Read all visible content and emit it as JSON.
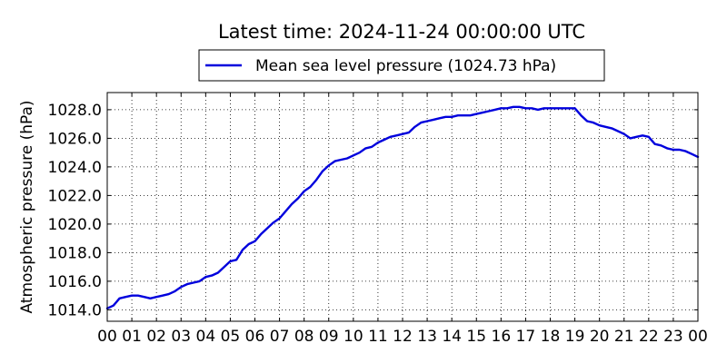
{
  "chart_data": {
    "type": "line",
    "title": "Latest time: 2024-11-24 00:00:00 UTC",
    "xlabel": "",
    "ylabel": "Atmospheric pressure (hPa)",
    "x_tick_labels": [
      "00",
      "01",
      "02",
      "03",
      "04",
      "05",
      "06",
      "07",
      "08",
      "09",
      "10",
      "11",
      "12",
      "13",
      "14",
      "15",
      "16",
      "17",
      "18",
      "19",
      "20",
      "21",
      "22",
      "23",
      "00"
    ],
    "y_tick_labels": [
      "1014.0",
      "1016.0",
      "1018.0",
      "1020.0",
      "1022.0",
      "1024.0",
      "1026.0",
      "1028.0"
    ],
    "y_ticks": [
      1014,
      1016,
      1018,
      1020,
      1022,
      1024,
      1026,
      1028
    ],
    "xlim": [
      0,
      24
    ],
    "ylim": [
      1013.2,
      1029.2
    ],
    "grid": true,
    "legend_position": "top-center",
    "series": [
      {
        "name": "Mean sea level pressure (1024.73 hPa)",
        "color": "#0000dd",
        "x": [
          0,
          0.25,
          0.5,
          0.75,
          1,
          1.25,
          1.5,
          1.75,
          2,
          2.25,
          2.5,
          2.75,
          3,
          3.25,
          3.5,
          3.75,
          4,
          4.25,
          4.5,
          4.75,
          5,
          5.25,
          5.5,
          5.75,
          6,
          6.25,
          6.5,
          6.75,
          7,
          7.25,
          7.5,
          7.75,
          8,
          8.25,
          8.5,
          8.75,
          9,
          9.25,
          9.5,
          9.75,
          10,
          10.25,
          10.5,
          10.75,
          11,
          11.25,
          11.5,
          11.75,
          12,
          12.25,
          12.5,
          12.75,
          13,
          13.25,
          13.5,
          13.75,
          14,
          14.25,
          14.5,
          14.75,
          15,
          15.25,
          15.5,
          15.75,
          16,
          16.25,
          16.5,
          16.75,
          17,
          17.25,
          17.5,
          17.75,
          18,
          18.25,
          18.5,
          18.75,
          19,
          19.25,
          19.5,
          19.75,
          20,
          20.25,
          20.5,
          20.75,
          21,
          21.25,
          21.5,
          21.75,
          22,
          22.25,
          22.5,
          22.75,
          23,
          23.25,
          23.5,
          23.75,
          24
        ],
        "values": [
          1014.1,
          1014.3,
          1014.8,
          1014.9,
          1015.0,
          1015.0,
          1014.9,
          1014.8,
          1014.9,
          1015.0,
          1015.1,
          1015.3,
          1015.6,
          1015.8,
          1015.9,
          1016.0,
          1016.3,
          1016.4,
          1016.6,
          1017.0,
          1017.4,
          1017.5,
          1018.2,
          1018.6,
          1018.8,
          1019.3,
          1019.7,
          1020.1,
          1020.4,
          1020.9,
          1021.4,
          1021.8,
          1022.3,
          1022.6,
          1023.1,
          1023.7,
          1024.1,
          1024.4,
          1024.5,
          1024.6,
          1024.8,
          1025.0,
          1025.3,
          1025.4,
          1025.7,
          1025.9,
          1026.1,
          1026.2,
          1026.3,
          1026.4,
          1026.8,
          1027.1,
          1027.2,
          1027.3,
          1027.4,
          1027.5,
          1027.5,
          1027.6,
          1027.6,
          1027.6,
          1027.7,
          1027.8,
          1027.9,
          1028.0,
          1028.1,
          1028.1,
          1028.2,
          1028.2,
          1028.1,
          1028.1,
          1028.0,
          1028.1,
          1028.1,
          1028.1,
          1028.1,
          1028.1,
          1028.1,
          1027.6,
          1027.2,
          1027.1,
          1026.9,
          1026.8,
          1026.7,
          1026.5,
          1026.3,
          1026.0,
          1026.1,
          1026.2,
          1026.1,
          1025.6,
          1025.5,
          1025.3,
          1025.2,
          1025.2,
          1025.1,
          1024.9,
          1024.7
        ]
      }
    ]
  }
}
